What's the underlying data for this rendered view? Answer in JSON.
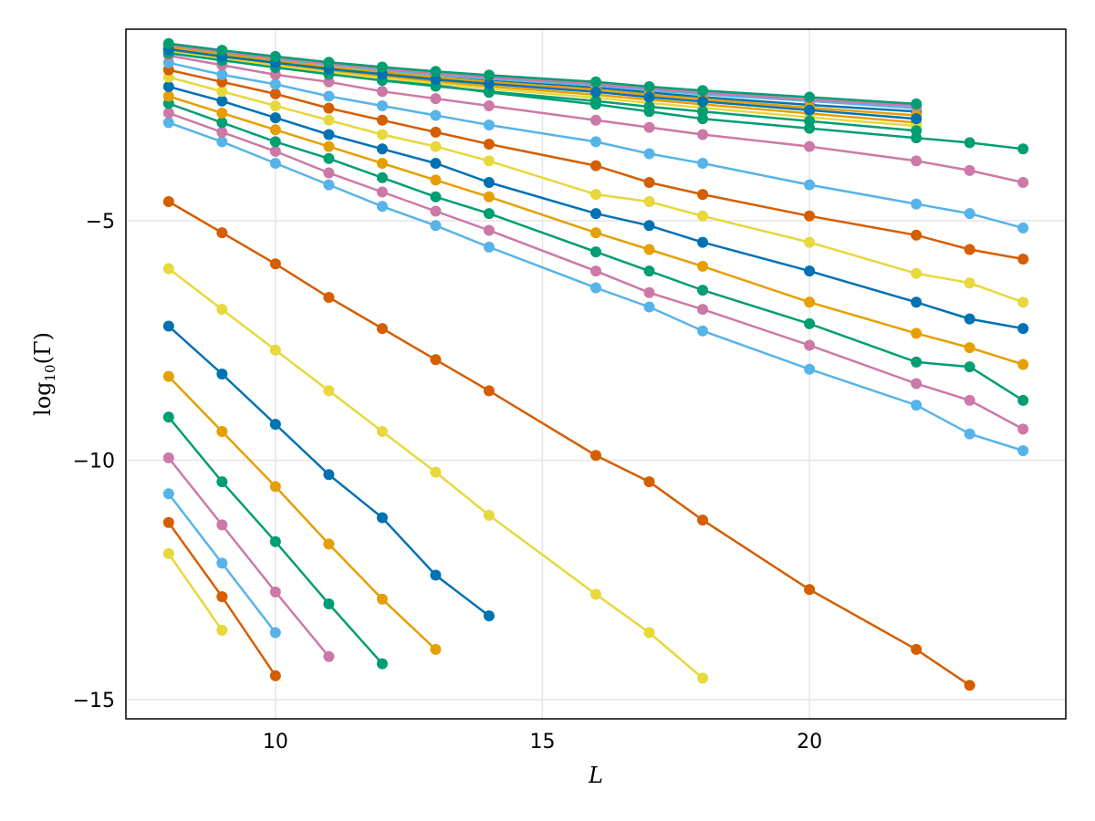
{
  "chart_data": {
    "type": "line",
    "title": "",
    "xlabel": "L",
    "ylabel_main": "log",
    "ylabel_sub": "10",
    "ylabel_tail": "(Γ)",
    "xlim": [
      7.2,
      24.8
    ],
    "ylim": [
      -15.4,
      -1.0
    ],
    "xticks": [
      10,
      15,
      20
    ],
    "yticks": [
      -5,
      -10,
      -15
    ],
    "xtick_labels": [
      "10",
      "15",
      "20"
    ],
    "ytick_labels": [
      "−5",
      "−10",
      "−15"
    ],
    "grid": true,
    "legend": "none",
    "colors": {
      "grid": "#e6e6e6",
      "frame": "#000000"
    },
    "series": [
      {
        "name": "s1",
        "color": "#e8d83b",
        "x": [
          8,
          9
        ],
        "y": [
          -11.95,
          -13.55
        ]
      },
      {
        "name": "s2",
        "color": "#d55e00",
        "x": [
          8,
          9,
          10
        ],
        "y": [
          -11.3,
          -12.85,
          -14.5
        ]
      },
      {
        "name": "s3",
        "color": "#56b4e9",
        "x": [
          8,
          9,
          10
        ],
        "y": [
          -10.7,
          -12.15,
          -13.6
        ]
      },
      {
        "name": "s4",
        "color": "#cc79a7",
        "x": [
          8,
          9,
          10,
          11
        ],
        "y": [
          -9.95,
          -11.35,
          -12.75,
          -14.1
        ]
      },
      {
        "name": "s5",
        "color": "#009e73",
        "x": [
          8,
          9,
          10,
          11,
          12
        ],
        "y": [
          -9.1,
          -10.45,
          -11.7,
          -13.0,
          -14.25
        ]
      },
      {
        "name": "s6",
        "color": "#e69f00",
        "x": [
          8,
          9,
          10,
          11,
          12,
          13
        ],
        "y": [
          -8.25,
          -9.4,
          -10.55,
          -11.75,
          -12.9,
          -13.95
        ]
      },
      {
        "name": "s7",
        "color": "#0072b2",
        "x": [
          8,
          9,
          10,
          11,
          12,
          13,
          14
        ],
        "y": [
          -7.2,
          -8.2,
          -9.25,
          -10.3,
          -11.2,
          -12.4,
          -13.25
        ]
      },
      {
        "name": "s8",
        "color": "#e8d83b",
        "x": [
          8,
          9,
          10,
          11,
          12,
          13,
          14,
          16,
          17,
          18
        ],
        "y": [
          -6.0,
          -6.85,
          -7.7,
          -8.55,
          -9.4,
          -10.25,
          -11.15,
          -12.8,
          -13.6,
          -14.55
        ]
      },
      {
        "name": "s9",
        "color": "#d55e00",
        "x": [
          8,
          9,
          10,
          11,
          12,
          13,
          14,
          16,
          17,
          18,
          20,
          22,
          23
        ],
        "y": [
          -4.6,
          -5.25,
          -5.9,
          -6.6,
          -7.25,
          -7.9,
          -8.55,
          -9.9,
          -10.45,
          -11.25,
          -12.7,
          -13.95,
          -14.7
        ]
      },
      {
        "name": "s10",
        "color": "#56b4e9",
        "x": [
          8,
          9,
          10,
          11,
          12,
          13,
          14,
          16,
          17,
          18,
          20,
          22,
          23,
          24
        ],
        "y": [
          -2.95,
          -3.35,
          -3.8,
          -4.25,
          -4.7,
          -5.1,
          -5.55,
          -6.4,
          -6.8,
          -7.3,
          -8.1,
          -8.85,
          -9.45,
          -9.8
        ]
      },
      {
        "name": "s11",
        "color": "#cc79a7",
        "x": [
          8,
          9,
          10,
          11,
          12,
          13,
          14,
          16,
          17,
          18,
          20,
          22,
          23,
          24
        ],
        "y": [
          -2.75,
          -3.15,
          -3.55,
          -4.0,
          -4.4,
          -4.8,
          -5.2,
          -6.05,
          -6.5,
          -6.85,
          -7.6,
          -8.4,
          -8.75,
          -9.35
        ]
      },
      {
        "name": "s12",
        "color": "#009e73",
        "x": [
          8,
          9,
          10,
          11,
          12,
          13,
          14,
          16,
          17,
          18,
          20,
          22,
          23,
          24
        ],
        "y": [
          -2.55,
          -2.95,
          -3.35,
          -3.7,
          -4.1,
          -4.5,
          -4.85,
          -5.65,
          -6.05,
          -6.45,
          -7.15,
          -7.95,
          -8.05,
          -8.75
        ]
      },
      {
        "name": "s13",
        "color": "#e69f00",
        "x": [
          8,
          9,
          10,
          11,
          12,
          13,
          14,
          16,
          17,
          18,
          20,
          22,
          23,
          24
        ],
        "y": [
          -2.4,
          -2.75,
          -3.1,
          -3.45,
          -3.8,
          -4.15,
          -4.5,
          -5.25,
          -5.6,
          -5.95,
          -6.7,
          -7.35,
          -7.65,
          -8.0
        ]
      },
      {
        "name": "s14",
        "color": "#0072b2",
        "x": [
          8,
          9,
          10,
          11,
          12,
          13,
          14,
          16,
          17,
          18,
          20,
          22,
          23,
          24
        ],
        "y": [
          -2.2,
          -2.5,
          -2.85,
          -3.2,
          -3.5,
          -3.8,
          -4.2,
          -4.85,
          -5.1,
          -5.45,
          -6.05,
          -6.7,
          -7.05,
          -7.25
        ]
      },
      {
        "name": "s15",
        "color": "#e8d83b",
        "x": [
          8,
          9,
          10,
          11,
          12,
          13,
          14,
          16,
          17,
          18,
          20,
          22,
          23,
          24
        ],
        "y": [
          -2.0,
          -2.3,
          -2.6,
          -2.9,
          -3.2,
          -3.45,
          -3.75,
          -4.45,
          -4.6,
          -4.9,
          -5.45,
          -6.1,
          -6.3,
          -6.7
        ]
      },
      {
        "name": "s16",
        "color": "#d55e00",
        "x": [
          8,
          9,
          10,
          11,
          12,
          13,
          14,
          16,
          17,
          18,
          20,
          22,
          23,
          24
        ],
        "y": [
          -1.85,
          -2.1,
          -2.35,
          -2.65,
          -2.9,
          -3.15,
          -3.4,
          -3.85,
          -4.2,
          -4.45,
          -4.9,
          -5.3,
          -5.6,
          -5.8
        ]
      },
      {
        "name": "s17",
        "color": "#56b4e9",
        "x": [
          8,
          9,
          10,
          11,
          12,
          13,
          14,
          16,
          17,
          18,
          20,
          22,
          23,
          24
        ],
        "y": [
          -1.7,
          -1.95,
          -2.15,
          -2.4,
          -2.6,
          -2.8,
          -3.0,
          -3.35,
          -3.6,
          -3.8,
          -4.25,
          -4.65,
          -4.85,
          -5.15
        ]
      },
      {
        "name": "s18",
        "color": "#cc79a7",
        "x": [
          8,
          9,
          10,
          11,
          12,
          13,
          14,
          16,
          17,
          18,
          20,
          22,
          23,
          24
        ],
        "y": [
          -1.55,
          -1.75,
          -1.95,
          -2.1,
          -2.3,
          -2.45,
          -2.6,
          -2.9,
          -3.05,
          -3.2,
          -3.45,
          -3.75,
          -3.95,
          -4.2
        ]
      },
      {
        "name": "s19",
        "color": "#009e73",
        "x": [
          8,
          9,
          10,
          11,
          12,
          13,
          14,
          16,
          17,
          18,
          20,
          22,
          23,
          24
        ],
        "y": [
          -1.42,
          -1.57,
          -1.72,
          -1.87,
          -2.02,
          -2.17,
          -2.32,
          -2.57,
          -2.72,
          -2.87,
          -3.07,
          -3.27,
          -3.37,
          -3.5
        ]
      },
      {
        "name": "s20",
        "color": "#0072b2",
        "x": [
          8,
          9,
          10,
          11,
          12,
          13,
          14,
          16,
          17,
          18,
          20,
          22
        ],
        "y": [
          -1.4,
          -1.55,
          -1.68,
          -1.8,
          -1.9,
          -2.0,
          -2.08,
          -2.22,
          -2.32,
          -2.42,
          -2.58,
          -2.72
        ]
      },
      {
        "name": "s21",
        "color": "#e69f00",
        "x": [
          8,
          9,
          10,
          11,
          12,
          13,
          14,
          16,
          17,
          18,
          20,
          22
        ],
        "y": [
          -1.45,
          -1.6,
          -1.73,
          -1.86,
          -1.98,
          -2.09,
          -2.19,
          -2.37,
          -2.47,
          -2.57,
          -2.76,
          -2.95
        ]
      },
      {
        "name": "s22",
        "color": "#56b4e9",
        "x": [
          8,
          9,
          10,
          11,
          12,
          13,
          14,
          16,
          17,
          18,
          20,
          22
        ],
        "y": [
          -1.35,
          -1.5,
          -1.62,
          -1.74,
          -1.85,
          -1.95,
          -2.03,
          -2.17,
          -2.27,
          -2.36,
          -2.5,
          -2.65
        ]
      },
      {
        "name": "s23",
        "color": "#cc79a7",
        "x": [
          8,
          9,
          10,
          11,
          12,
          13,
          14,
          16,
          17,
          18,
          20,
          22
        ],
        "y": [
          -1.33,
          -1.47,
          -1.6,
          -1.72,
          -1.82,
          -1.92,
          -2.0,
          -2.14,
          -2.24,
          -2.32,
          -2.47,
          -2.6
        ]
      },
      {
        "name": "s24",
        "color": "#e8d83b",
        "x": [
          8,
          9,
          10,
          11,
          12,
          13,
          14,
          16,
          17,
          18,
          20,
          22
        ],
        "y": [
          -1.47,
          -1.62,
          -1.76,
          -1.9,
          -2.02,
          -2.13,
          -2.24,
          -2.43,
          -2.54,
          -2.64,
          -2.84,
          -3.02
        ]
      },
      {
        "name": "s25",
        "color": "#009e73",
        "x": [
          8,
          9,
          10,
          11,
          12,
          13,
          14,
          16,
          17,
          18,
          20,
          22
        ],
        "y": [
          -1.5,
          -1.65,
          -1.8,
          -1.94,
          -2.07,
          -2.19,
          -2.3,
          -2.5,
          -2.62,
          -2.72,
          -2.92,
          -3.12
        ]
      },
      {
        "name": "s26",
        "color": "#e69f00",
        "x": [
          8,
          9,
          10,
          11,
          12,
          13,
          14,
          16,
          17,
          18,
          20,
          22
        ],
        "y": [
          -1.38,
          -1.53,
          -1.66,
          -1.79,
          -1.9,
          -2.0,
          -2.1,
          -2.26,
          -2.37,
          -2.46,
          -2.64,
          -2.8
        ]
      },
      {
        "name": "s27",
        "color": "#0072b2",
        "x": [
          8,
          9,
          10,
          11,
          12,
          13,
          14,
          16,
          17,
          18,
          20,
          22
        ],
        "y": [
          -1.42,
          -1.57,
          -1.7,
          -1.83,
          -1.94,
          -2.05,
          -2.14,
          -2.31,
          -2.42,
          -2.51,
          -2.69,
          -2.87
        ]
      },
      {
        "name": "s28",
        "color": "#009e73",
        "x": [
          8,
          9,
          10,
          11,
          12,
          13,
          14,
          16,
          17,
          18,
          20,
          22
        ],
        "y": [
          -1.3,
          -1.44,
          -1.57,
          -1.69,
          -1.79,
          -1.88,
          -1.96,
          -2.1,
          -2.2,
          -2.28,
          -2.42,
          -2.56
        ]
      }
    ]
  }
}
